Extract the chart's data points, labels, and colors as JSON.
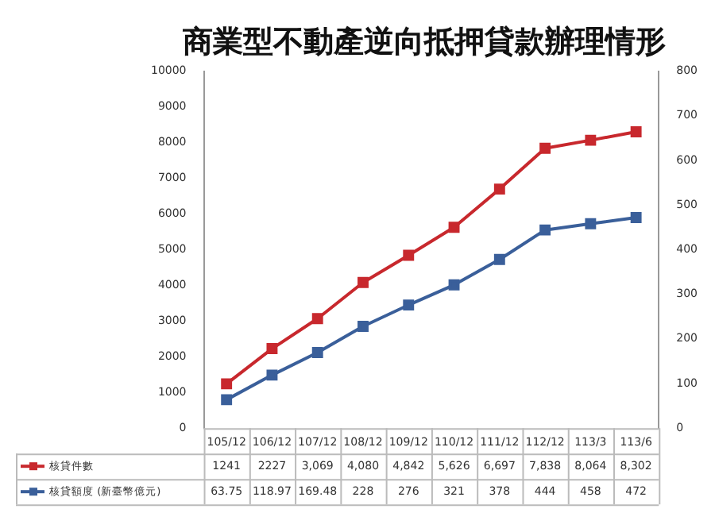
{
  "chart_data": {
    "type": "line",
    "title": "商業型不動產逆向抵押貸款辦理情形",
    "categories": [
      "105/12",
      "106/12",
      "107/12",
      "108/12",
      "109/12",
      "110/12",
      "111/12",
      "112/12",
      "113/3",
      "113/6"
    ],
    "series": [
      {
        "name": "核貸件數",
        "color": "#c8282d",
        "values": [
          1241,
          2227,
          3069,
          4080,
          4842,
          5626,
          6697,
          7838,
          8064,
          8302
        ],
        "value_labels": [
          "1241",
          "2227",
          "3,069",
          "4,080",
          "4,842",
          "5,626",
          "6,697",
          "7,838",
          "8,064",
          "8,302"
        ]
      },
      {
        "name": "核貸額度 (新臺幣億元)",
        "color": "#3a5f9a",
        "axis": "y2",
        "values": [
          63.75,
          118.97,
          169.48,
          228,
          276,
          321,
          378,
          444,
          458,
          472
        ],
        "value_labels": [
          "63.75",
          "118.97",
          "169.48",
          "228",
          "276",
          "321",
          "378",
          "444",
          "458",
          "472"
        ]
      }
    ],
    "ylim": [
      0,
      10000
    ],
    "yticks": [
      0,
      1000,
      2000,
      3000,
      4000,
      5000,
      6000,
      7000,
      8000,
      9000,
      10000
    ],
    "y2lim": [
      0,
      800
    ],
    "y2ticks": [
      0,
      100,
      200,
      300,
      400,
      500,
      600,
      700,
      800
    ],
    "grid": false,
    "legend": "bottom left",
    "marker": "square",
    "line_style": "solid"
  }
}
